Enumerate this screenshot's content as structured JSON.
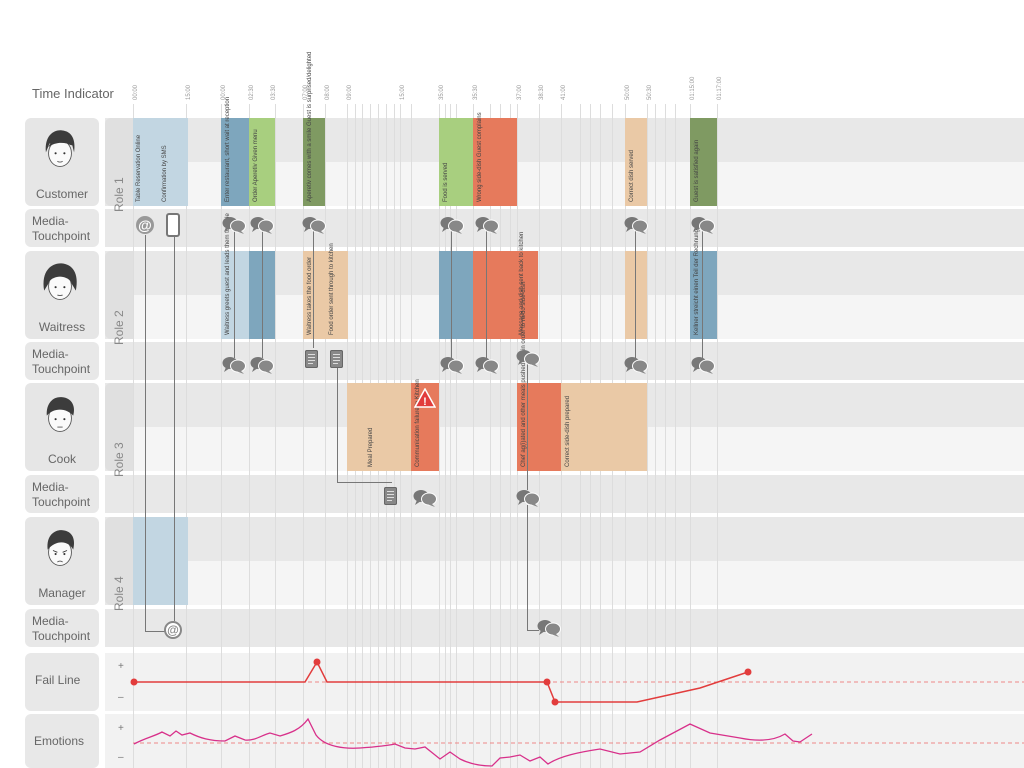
{
  "time_indicator": {
    "title": "Time Indicator",
    "ticks": [
      "00:00",
      "15:00",
      "00:00",
      "02:30",
      "03:30",
      "07:00",
      "08:00",
      "09:00",
      "15:00",
      "35:00",
      "35:30",
      "37:00",
      "38:30",
      "41:00",
      "50:00",
      "50:30",
      "01:15:00",
      "01:17:00"
    ]
  },
  "rows": {
    "customer": {
      "label": "Customer",
      "role": "Role 1"
    },
    "waitress": {
      "label": "Waitress",
      "role": "Role 2"
    },
    "cook": {
      "label": "Cook",
      "role": "Role 3"
    },
    "manager": {
      "label": "Manager",
      "role": "Role 4"
    },
    "touchpoint_line1": "Media-",
    "touchpoint_line2": "Touchpoint",
    "fail_line": "Fail Line",
    "emotions": "Emotions",
    "plus": "+",
    "minus": "–"
  },
  "steps": {
    "c1": "Table Reservation Online",
    "c2": "Confirmation by SMS",
    "c3": "Enter restaurant, short wait at reception",
    "c4": "Order Aperetiv Given menu",
    "c5": "Aperetiv comes with a smile Guest is surprised/delighted",
    "c6": "Food is served",
    "c7": "Wrong side-dish Guest complains",
    "c8": "Correct dish served",
    "c9": "Guest is satisfied again",
    "w1": "Waitress greets guest and leads them to table",
    "w2": "Waitress takes the food order",
    "w3": "Food order sent through to kitchen",
    "w4": "Message and dish sent back to kitchen",
    "w5": "Kellner streicht einen Teil der Rechnung",
    "k1": "Meal Prepared",
    "k2": "Communication failure in Kitchen",
    "k3": "Chef ag(i)ated and other meals pushed late in order to re-do side-dish",
    "k4": "Correct side-dish prepared"
  },
  "icons": {
    "at": "@",
    "warning": "!"
  },
  "colors": {
    "blue": "#7ea6bd",
    "blue_light": "#c2d6e2",
    "green": "#a8cf7f",
    "green_dark": "#7f9a62",
    "orange": "#e67a5c",
    "peach": "#eac9a6",
    "red": "#e23c3c",
    "pink": "#d8308a"
  }
}
